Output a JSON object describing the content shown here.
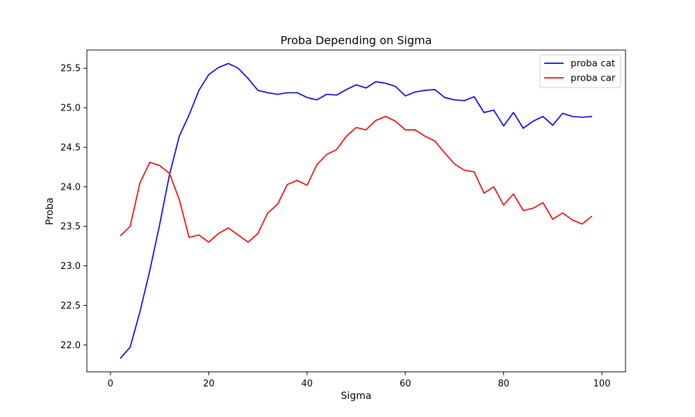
{
  "chart_data": {
    "type": "line",
    "title": "Proba Depending on Sigma",
    "xlabel": "Sigma",
    "ylabel": "Proba",
    "xlim": [
      -4.8,
      104.8
    ],
    "ylim": [
      21.66,
      25.73
    ],
    "xticks": [
      0,
      20,
      40,
      60,
      80,
      100
    ],
    "yticks": [
      22.0,
      22.5,
      23.0,
      23.5,
      24.0,
      24.5,
      25.0,
      25.5
    ],
    "ytick_labels": [
      "22.0",
      "22.5",
      "23.0",
      "23.5",
      "24.0",
      "24.5",
      "25.0",
      "25.5"
    ],
    "grid": false,
    "legend": "top-right",
    "x": [
      2,
      4,
      6,
      8,
      10,
      12,
      14,
      16,
      18,
      20,
      22,
      24,
      26,
      28,
      30,
      32,
      34,
      36,
      38,
      40,
      42,
      44,
      46,
      48,
      50,
      52,
      54,
      56,
      58,
      60,
      62,
      64,
      66,
      68,
      70,
      72,
      74,
      76,
      78,
      80,
      82,
      84,
      86,
      88,
      90,
      92,
      94,
      96,
      98
    ],
    "series": [
      {
        "name": "proba cat",
        "color": "#0000ff",
        "values": [
          21.83,
          21.97,
          22.42,
          22.94,
          23.52,
          24.15,
          24.64,
          24.91,
          25.22,
          25.42,
          25.51,
          25.56,
          25.5,
          25.37,
          25.22,
          25.19,
          25.17,
          25.19,
          25.19,
          25.13,
          25.1,
          25.17,
          25.16,
          25.23,
          25.29,
          25.25,
          25.33,
          25.31,
          25.27,
          25.15,
          25.2,
          25.22,
          25.23,
          25.13,
          25.1,
          25.09,
          25.14,
          24.94,
          24.97,
          24.77,
          24.94,
          24.74,
          24.83,
          24.89,
          24.78,
          24.93,
          24.89,
          24.88,
          24.89
        ]
      },
      {
        "name": "proba car",
        "color": "#ff0000",
        "values": [
          23.38,
          23.5,
          24.05,
          24.31,
          24.27,
          24.17,
          23.84,
          23.36,
          23.39,
          23.3,
          23.41,
          23.48,
          23.39,
          23.3,
          23.41,
          23.67,
          23.78,
          24.03,
          24.08,
          24.02,
          24.28,
          24.41,
          24.47,
          24.64,
          24.75,
          24.72,
          24.84,
          24.89,
          24.83,
          24.72,
          24.72,
          24.64,
          24.58,
          24.43,
          24.29,
          24.21,
          24.19,
          23.92,
          24.0,
          23.77,
          23.91,
          23.7,
          23.73,
          23.8,
          23.59,
          23.67,
          23.58,
          23.53,
          23.63
        ]
      }
    ]
  }
}
